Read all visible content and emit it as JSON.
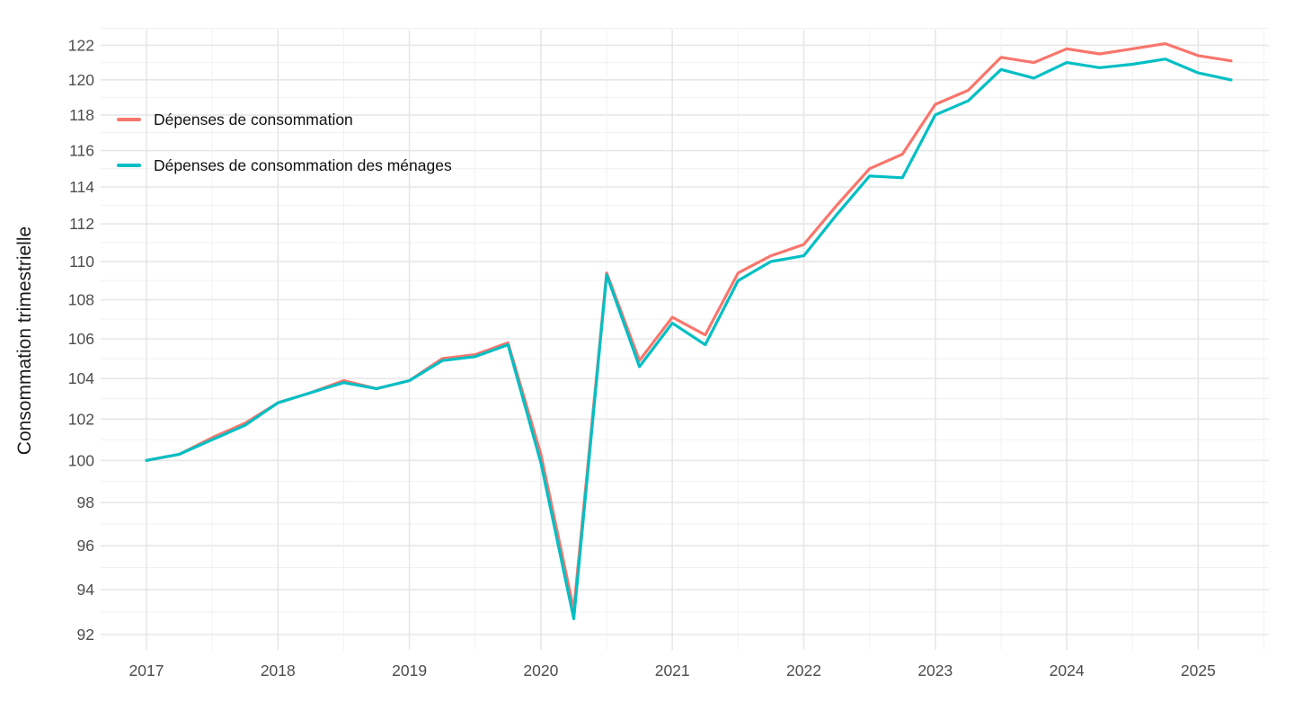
{
  "chart_data": {
    "type": "line",
    "title": "",
    "xlabel": "",
    "ylabel": "Consommation trimestrielle",
    "y_scale": "log",
    "ylim": [
      91.3,
      123.0
    ],
    "xlim": [
      2016.65,
      2025.55
    ],
    "grid": true,
    "legend_position": "inside-top-left",
    "x_ticks": [
      "2017",
      "2018",
      "2019",
      "2020",
      "2021",
      "2022",
      "2023",
      "2024",
      "2025"
    ],
    "y_ticks": [
      "92",
      "94",
      "96",
      "98",
      "100",
      "102",
      "104",
      "106",
      "108",
      "110",
      "112",
      "114",
      "116",
      "118",
      "120",
      "122"
    ],
    "x_start": 2017,
    "x_step": 0.25,
    "x": [
      2017.0,
      2017.25,
      2017.5,
      2017.75,
      2018.0,
      2018.25,
      2018.5,
      2018.75,
      2019.0,
      2019.25,
      2019.5,
      2019.75,
      2020.0,
      2020.25,
      2020.5,
      2020.75,
      2021.0,
      2021.25,
      2021.5,
      2021.75,
      2022.0,
      2022.25,
      2022.5,
      2022.75,
      2023.0,
      2023.25,
      2023.5,
      2023.75,
      2024.0,
      2024.25,
      2024.5,
      2024.75,
      2025.0,
      2025.25
    ],
    "series": [
      {
        "name": "Dépenses de consommation",
        "color": "#F8766D",
        "values": [
          100.0,
          100.3,
          101.1,
          101.8,
          102.8,
          103.3,
          103.9,
          103.5,
          103.9,
          105.0,
          105.2,
          105.8,
          100.3,
          93.1,
          109.4,
          104.9,
          107.1,
          106.2,
          109.4,
          110.3,
          110.9,
          113.0,
          115.0,
          115.8,
          118.6,
          119.4,
          121.3,
          121.0,
          121.8,
          121.5,
          121.8,
          122.1,
          121.4,
          121.1
        ]
      },
      {
        "name": "Dépenses de consommation des ménages",
        "color": "#00BFC4",
        "values": [
          100.0,
          100.3,
          101.0,
          101.7,
          102.8,
          103.3,
          103.8,
          103.5,
          103.9,
          104.9,
          105.1,
          105.7,
          99.9,
          92.7,
          109.3,
          104.6,
          106.8,
          105.7,
          109.0,
          110.0,
          110.3,
          112.5,
          114.6,
          114.5,
          118.0,
          118.8,
          120.6,
          120.1,
          121.0,
          120.7,
          120.9,
          121.2,
          120.4,
          120.0
        ]
      }
    ],
    "colors": {
      "background": "#ffffff",
      "grid_major": "#e7e7e7",
      "grid_minor": "#f1f1f1",
      "axis_text": "#4d4d4d",
      "axis_title": "#1a1a1a",
      "legend_text": "#111111"
    }
  }
}
